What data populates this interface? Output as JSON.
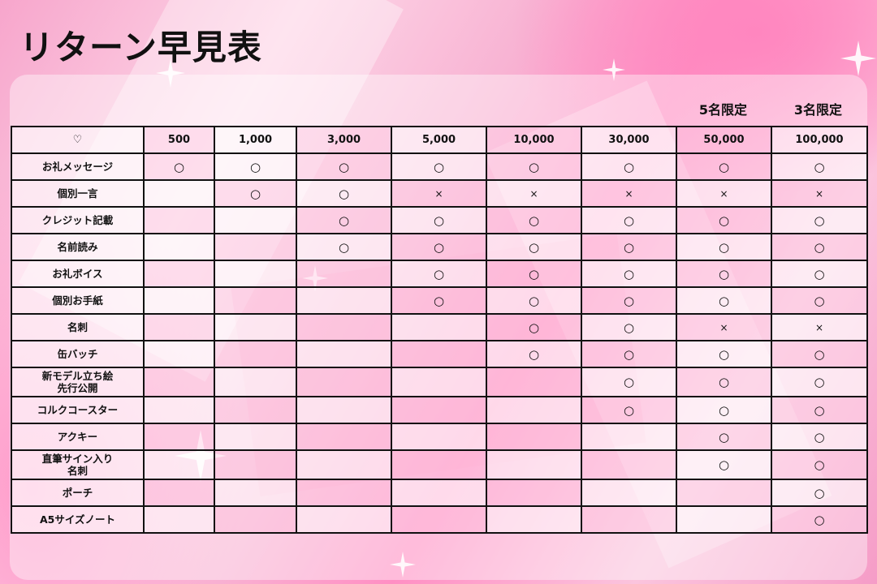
{
  "title": "リターン早見表",
  "limits": [
    {
      "column": "50,000",
      "label": "5名限定"
    },
    {
      "column": "100,000",
      "label": "3名限定"
    }
  ],
  "table": {
    "corner": "♡",
    "columns": [
      "500",
      "1,000",
      "3,000",
      "5,000",
      "10,000",
      "30,000",
      "50,000",
      "100,000"
    ],
    "rows": [
      {
        "label": "お礼メッセージ",
        "cells": [
          "○",
          "○",
          "○",
          "○",
          "○",
          "○",
          "○",
          "○"
        ]
      },
      {
        "label": "個別一言",
        "cells": [
          "",
          "○",
          "○",
          "×",
          "×",
          "×",
          "×",
          "×"
        ]
      },
      {
        "label": "クレジット記載",
        "cells": [
          "",
          "",
          "○",
          "○",
          "○",
          "○",
          "○",
          "○"
        ]
      },
      {
        "label": "名前読み",
        "cells": [
          "",
          "",
          "○",
          "○",
          "○",
          "○",
          "○",
          "○"
        ]
      },
      {
        "label": "お礼ボイス",
        "cells": [
          "",
          "",
          "",
          "○",
          "○",
          "○",
          "○",
          "○"
        ]
      },
      {
        "label": "個別お手紙",
        "cells": [
          "",
          "",
          "",
          "○",
          "○",
          "○",
          "○",
          "○"
        ]
      },
      {
        "label": "名刺",
        "cells": [
          "",
          "",
          "",
          "",
          "○",
          "○",
          "×",
          "×"
        ]
      },
      {
        "label": "缶バッチ",
        "cells": [
          "",
          "",
          "",
          "",
          "○",
          "○",
          "○",
          "○"
        ]
      },
      {
        "label": "新モデル立ち絵\n先行公開",
        "cells": [
          "",
          "",
          "",
          "",
          "",
          "○",
          "○",
          "○"
        ]
      },
      {
        "label": "コルクコースター",
        "cells": [
          "",
          "",
          "",
          "",
          "",
          "○",
          "○",
          "○"
        ]
      },
      {
        "label": "アクキー",
        "cells": [
          "",
          "",
          "",
          "",
          "",
          "",
          "○",
          "○"
        ]
      },
      {
        "label": "直筆サイン入り\n名刺",
        "cells": [
          "",
          "",
          "",
          "",
          "",
          "",
          "○",
          "○"
        ]
      },
      {
        "label": "ポーチ",
        "cells": [
          "",
          "",
          "",
          "",
          "",
          "",
          "",
          "○"
        ]
      },
      {
        "label": "A5サイズノート",
        "cells": [
          "",
          "",
          "",
          "",
          "",
          "",
          "",
          "○"
        ]
      }
    ]
  },
  "colors": {
    "background": "#f8b3d3",
    "accent": "#ff8fc3",
    "text": "#111111"
  },
  "icons": {
    "corner": "heart-outline-icon",
    "included": "circle-icon",
    "excluded": "cross-icon",
    "decoration": "sparkle-icon"
  }
}
